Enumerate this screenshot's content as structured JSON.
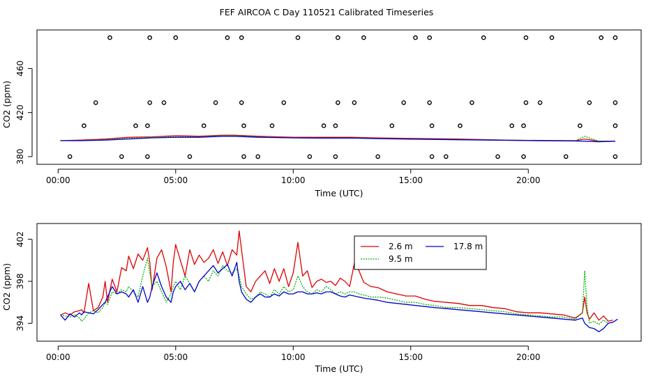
{
  "figure": {
    "title": "FEF AIRCOA C  Day 110521  Calibrated Timeseries"
  },
  "colors": {
    "s26": "#dd0000",
    "s95": "#00b000",
    "s178": "#0000cc",
    "calib": "#000000"
  },
  "chart_data": [
    {
      "type": "scatter+line",
      "ylabel": "CO2 (ppm)",
      "xlabel": "Time (UTC)",
      "xlim": [
        -0.9,
        24.8
      ],
      "ylim": [
        373,
        495
      ],
      "xticks": [
        0,
        5,
        10,
        15,
        20
      ],
      "xtick_labels": [
        "00:00",
        "05:00",
        "10:00",
        "15:00",
        "20:00"
      ],
      "yticks": [
        380,
        420,
        460
      ],
      "ytick_labels": [
        "380",
        "420",
        "460"
      ],
      "calibration_points": [
        [
          0.5,
          380
        ],
        [
          2.7,
          380
        ],
        [
          3.8,
          380
        ],
        [
          5.6,
          380
        ],
        [
          7.9,
          380
        ],
        [
          8.5,
          380
        ],
        [
          10.7,
          380
        ],
        [
          11.8,
          380
        ],
        [
          13.6,
          380
        ],
        [
          15.9,
          380
        ],
        [
          16.5,
          380
        ],
        [
          18.7,
          380
        ],
        [
          19.8,
          380
        ],
        [
          21.6,
          380
        ],
        [
          23.7,
          380
        ],
        [
          1.1,
          408
        ],
        [
          3.3,
          408
        ],
        [
          3.8,
          408
        ],
        [
          6.2,
          408
        ],
        [
          7.9,
          408
        ],
        [
          9.1,
          408
        ],
        [
          11.3,
          408
        ],
        [
          11.8,
          408
        ],
        [
          14.2,
          408
        ],
        [
          15.9,
          408
        ],
        [
          17.1,
          408
        ],
        [
          19.3,
          408
        ],
        [
          19.8,
          408
        ],
        [
          22.2,
          408
        ],
        [
          23.7,
          408
        ],
        [
          1.6,
          429
        ],
        [
          3.9,
          429
        ],
        [
          4.5,
          429
        ],
        [
          6.7,
          429
        ],
        [
          7.8,
          429
        ],
        [
          9.6,
          429
        ],
        [
          11.9,
          429
        ],
        [
          12.6,
          429
        ],
        [
          14.7,
          429
        ],
        [
          15.8,
          429
        ],
        [
          17.6,
          429
        ],
        [
          19.9,
          429
        ],
        [
          20.5,
          429
        ],
        [
          22.6,
          429
        ],
        [
          23.7,
          429
        ],
        [
          2.2,
          488
        ],
        [
          3.9,
          488
        ],
        [
          5.0,
          488
        ],
        [
          7.2,
          488
        ],
        [
          7.8,
          488
        ],
        [
          10.2,
          488
        ],
        [
          11.9,
          488
        ],
        [
          13.0,
          488
        ],
        [
          15.2,
          488
        ],
        [
          15.8,
          488
        ],
        [
          18.1,
          488
        ],
        [
          19.9,
          488
        ],
        [
          21.0,
          488
        ],
        [
          23.1,
          488
        ],
        [
          23.7,
          488
        ]
      ],
      "series": [
        {
          "name": "2.6 m",
          "x": [
            0.1,
            1.0,
            2.0,
            3.0,
            4.0,
            5.0,
            6.0,
            7.0,
            7.5,
            8.5,
            10.0,
            11.0,
            12.5,
            13.5,
            15.0,
            17.0,
            19.0,
            20.5,
            22.0,
            22.4,
            23.0,
            23.7
          ],
          "y": [
            394.5,
            395,
            396,
            397.5,
            398,
            399,
            398.5,
            399.5,
            399.5,
            398.5,
            397.5,
            397.5,
            397.5,
            397,
            396.5,
            396,
            395,
            394.7,
            394.5,
            396,
            394,
            394
          ]
        },
        {
          "name": "9.5 m",
          "x": [
            0.1,
            1.0,
            2.0,
            3.0,
            4.0,
            5.0,
            6.0,
            7.0,
            7.5,
            8.5,
            10.0,
            11.0,
            12.5,
            13.5,
            15.0,
            17.0,
            19.0,
            20.5,
            22.0,
            22.4,
            23.0,
            23.7
          ],
          "y": [
            394.5,
            394.5,
            395.5,
            396.5,
            397.5,
            398,
            398,
            399,
            399,
            398,
            397,
            397,
            397,
            396.5,
            396,
            395.5,
            395,
            394.5,
            394.3,
            398.5,
            394,
            394
          ]
        },
        {
          "name": "17.8 m",
          "x": [
            0.1,
            1.0,
            2.0,
            3.0,
            4.0,
            5.0,
            6.0,
            7.0,
            7.5,
            8.5,
            10.0,
            11.0,
            12.5,
            13.5,
            15.0,
            17.0,
            19.0,
            20.5,
            22.0,
            22.4,
            23.0,
            23.7
          ],
          "y": [
            394.5,
            394.5,
            395,
            396,
            397,
            397.5,
            397.5,
            398.5,
            398.5,
            397.5,
            397,
            396.8,
            396.8,
            396.3,
            395.8,
            395.3,
            394.8,
            394.4,
            394.2,
            394,
            393.5,
            394
          ]
        }
      ]
    },
    {
      "type": "line",
      "ylabel": "CO2 (ppm)",
      "xlabel": "Time (UTC)",
      "xlim": [
        -0.9,
        24.8
      ],
      "ylim": [
        392.3,
        403.5
      ],
      "xticks": [
        0,
        5,
        10,
        15,
        20
      ],
      "xtick_labels": [
        "00:00",
        "05:00",
        "10:00",
        "15:00",
        "20:00"
      ],
      "yticks": [
        394,
        398,
        402
      ],
      "ytick_labels": [
        "394",
        "398",
        "402"
      ],
      "legend": {
        "position": "top-center",
        "entries": [
          "2.6 m",
          "17.8 m",
          "9.5 m"
        ]
      },
      "series": [
        {
          "name": "2.6 m",
          "x": [
            0.1,
            0.3,
            0.5,
            0.7,
            0.9,
            1.0,
            1.1,
            1.3,
            1.5,
            1.7,
            1.9,
            2.0,
            2.1,
            2.3,
            2.5,
            2.7,
            2.9,
            3.0,
            3.2,
            3.4,
            3.6,
            3.8,
            3.9,
            4.0,
            4.2,
            4.4,
            4.6,
            4.8,
            4.9,
            5.0,
            5.2,
            5.4,
            5.6,
            5.8,
            6.0,
            6.2,
            6.4,
            6.6,
            6.8,
            7.0,
            7.2,
            7.4,
            7.6,
            7.7,
            7.8,
            8.0,
            8.2,
            8.4,
            8.6,
            8.8,
            9.0,
            9.2,
            9.4,
            9.6,
            9.8,
            10.0,
            10.2,
            10.4,
            10.6,
            10.8,
            11.0,
            11.2,
            11.4,
            11.6,
            11.8,
            12.0,
            12.2,
            12.4,
            12.6,
            12.8,
            13.0,
            13.3,
            13.6,
            14.0,
            14.4,
            14.8,
            15.2,
            15.6,
            16.0,
            16.5,
            17.0,
            17.5,
            18.0,
            18.5,
            19.0,
            19.5,
            20.0,
            20.5,
            21.0,
            21.5,
            22.0,
            22.3,
            22.4,
            22.5,
            22.6,
            22.8,
            23.0,
            23.2,
            23.4,
            23.6
          ],
          "y": [
            394.8,
            395.0,
            394.8,
            395.1,
            395.2,
            395.3,
            395.0,
            397.8,
            395.2,
            395.5,
            396.5,
            398.0,
            396.0,
            398.2,
            397.0,
            399.3,
            399.0,
            400.4,
            399.2,
            400.6,
            400.0,
            401.2,
            399.8,
            397.2,
            400.2,
            401.0,
            399.4,
            397.0,
            399.8,
            401.5,
            400.0,
            398.5,
            401.0,
            399.6,
            400.5,
            399.8,
            400.2,
            401.0,
            399.7,
            400.8,
            399.5,
            401.0,
            400.5,
            402.8,
            401.0,
            397.5,
            397.0,
            398.0,
            398.5,
            399.0,
            397.8,
            399.2,
            398.0,
            399.2,
            397.5,
            398.8,
            401.7,
            398.5,
            399.0,
            397.4,
            398.0,
            398.2,
            397.9,
            398.0,
            397.6,
            398.3,
            398.0,
            397.5,
            399.7,
            399.0,
            397.9,
            397.5,
            397.4,
            397.0,
            396.8,
            396.6,
            396.6,
            396.3,
            396.1,
            396.0,
            395.9,
            395.7,
            395.7,
            395.5,
            395.4,
            395.1,
            395.0,
            395.0,
            394.9,
            394.8,
            394.5,
            395.0,
            396.5,
            395.0,
            394.4,
            395.0,
            394.3,
            394.7,
            394.2,
            394.3
          ]
        },
        {
          "name": "9.5 m",
          "x": [
            0.1,
            0.3,
            0.5,
            0.7,
            0.9,
            1.0,
            1.1,
            1.3,
            1.5,
            1.7,
            1.9,
            2.0,
            2.1,
            2.3,
            2.5,
            2.7,
            2.9,
            3.0,
            3.2,
            3.4,
            3.6,
            3.8,
            3.9,
            4.0,
            4.2,
            4.4,
            4.6,
            4.8,
            4.9,
            5.0,
            5.2,
            5.4,
            5.6,
            5.8,
            6.0,
            6.2,
            6.4,
            6.6,
            6.8,
            7.0,
            7.2,
            7.4,
            7.6,
            7.7,
            7.8,
            8.0,
            8.2,
            8.4,
            8.6,
            8.8,
            9.0,
            9.2,
            9.4,
            9.6,
            9.8,
            10.0,
            10.2,
            10.4,
            10.6,
            10.8,
            11.0,
            11.2,
            11.4,
            11.6,
            11.8,
            12.0,
            12.2,
            12.4,
            12.6,
            12.8,
            13.0,
            13.3,
            13.6,
            14.0,
            14.4,
            14.8,
            15.2,
            15.6,
            16.0,
            16.5,
            17.0,
            17.5,
            18.0,
            18.5,
            19.0,
            19.5,
            20.0,
            20.5,
            21.0,
            21.5,
            22.0,
            22.3,
            22.4,
            22.5,
            22.6,
            22.8,
            23.0,
            23.2,
            23.4,
            23.6
          ],
          "y": [
            394.8,
            394.7,
            394.6,
            394.8,
            394.5,
            394.2,
            394.4,
            395.0,
            395.2,
            395.0,
            395.5,
            396.0,
            395.8,
            397.0,
            396.8,
            397.2,
            397.0,
            397.5,
            397.0,
            396.5,
            398.5,
            400.2,
            398.8,
            397.5,
            398.0,
            397.0,
            396.0,
            396.8,
            397.5,
            398.0,
            397.2,
            398.5,
            397.8,
            397.0,
            398.0,
            398.5,
            398.0,
            399.0,
            398.5,
            399.5,
            399.0,
            398.8,
            399.2,
            398.5,
            397.5,
            396.8,
            396.3,
            396.5,
            397.0,
            396.8,
            396.5,
            397.2,
            396.8,
            397.5,
            397.0,
            397.2,
            398.5,
            397.5,
            397.0,
            396.8,
            397.2,
            397.0,
            397.5,
            397.2,
            396.8,
            397.0,
            396.8,
            397.0,
            397.0,
            396.8,
            396.7,
            396.5,
            396.5,
            396.4,
            396.2,
            396.0,
            396.0,
            395.8,
            395.7,
            395.5,
            395.5,
            395.4,
            395.3,
            395.2,
            395.1,
            394.9,
            394.8,
            394.7,
            394.6,
            394.6,
            394.4,
            395.0,
            399.0,
            395.5,
            394.0,
            394.2,
            393.9,
            394.3,
            394.0,
            394.1
          ]
        },
        {
          "name": "17.8 m",
          "x": [
            0.1,
            0.3,
            0.5,
            0.7,
            0.9,
            1.0,
            1.1,
            1.3,
            1.5,
            1.7,
            1.9,
            2.0,
            2.1,
            2.3,
            2.5,
            2.7,
            2.9,
            3.0,
            3.2,
            3.4,
            3.6,
            3.8,
            3.9,
            4.0,
            4.2,
            4.4,
            4.6,
            4.8,
            4.9,
            5.0,
            5.2,
            5.4,
            5.6,
            5.8,
            6.0,
            6.2,
            6.4,
            6.6,
            6.8,
            7.0,
            7.2,
            7.4,
            7.6,
            7.7,
            7.8,
            8.0,
            8.2,
            8.4,
            8.6,
            8.8,
            9.0,
            9.2,
            9.4,
            9.6,
            9.8,
            10.0,
            10.2,
            10.4,
            10.6,
            10.8,
            11.0,
            11.2,
            11.4,
            11.6,
            11.8,
            12.0,
            12.2,
            12.4,
            12.6,
            12.8,
            13.0,
            13.3,
            13.6,
            14.0,
            14.4,
            14.8,
            15.2,
            15.6,
            16.0,
            16.5,
            17.0,
            17.5,
            18.0,
            18.5,
            19.0,
            19.5,
            20.0,
            20.5,
            21.0,
            21.5,
            22.0,
            22.3,
            22.4,
            22.5,
            22.6,
            22.8,
            23.0,
            23.2,
            23.4,
            23.6,
            23.8
          ],
          "y": [
            394.8,
            394.3,
            394.9,
            394.6,
            395.0,
            394.8,
            395.1,
            395.0,
            394.9,
            395.3,
            395.8,
            396.0,
            396.5,
            397.5,
            396.8,
            397.0,
            396.8,
            396.5,
            397.2,
            396.0,
            397.5,
            396.0,
            396.5,
            397.5,
            398.8,
            397.5,
            396.5,
            396.0,
            397.0,
            397.5,
            398.0,
            397.2,
            397.8,
            397.0,
            398.0,
            398.5,
            399.0,
            399.5,
            398.8,
            399.2,
            399.6,
            398.5,
            399.8,
            398.0,
            397.0,
            396.3,
            396.0,
            396.5,
            396.8,
            396.5,
            396.5,
            396.8,
            396.6,
            397.0,
            396.8,
            396.8,
            397.0,
            397.0,
            396.8,
            396.8,
            396.9,
            396.8,
            397.0,
            397.0,
            396.8,
            396.6,
            396.5,
            396.7,
            396.6,
            396.5,
            396.4,
            396.3,
            396.2,
            396.0,
            395.9,
            395.8,
            395.7,
            395.6,
            395.5,
            395.4,
            395.3,
            395.2,
            395.1,
            395.0,
            394.9,
            394.8,
            394.7,
            394.6,
            394.5,
            394.4,
            394.3,
            394.5,
            394.0,
            393.8,
            393.6,
            393.5,
            393.2,
            393.5,
            394.0,
            394.1,
            394.4
          ]
        }
      ]
    }
  ]
}
